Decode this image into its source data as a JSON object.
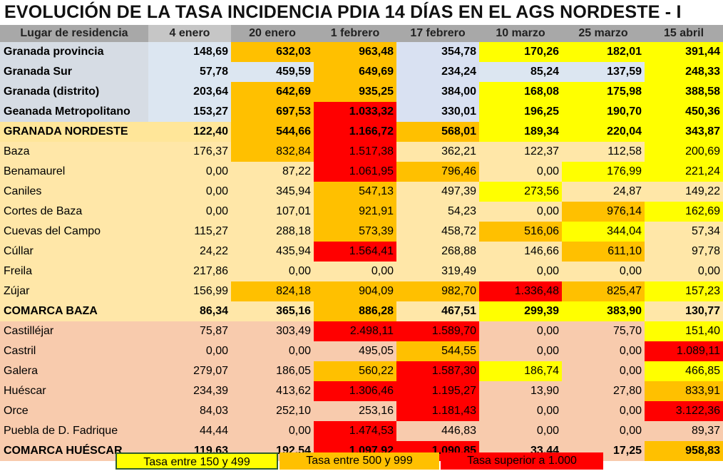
{
  "title": "EVOLUCIÓN DE LA TASA INCIDENCIA PDIA 14 DÍAS EN EL AGS NORDESTE - I",
  "colors": {
    "blue_row": "#dce6f1",
    "lavender": "#d9e1f2",
    "nordeste": "#ffe699",
    "baza": "#ffe7a8",
    "huescar": "#f8cbad",
    "yellow": "#ffff00",
    "orange": "#ffc000",
    "red": "#ff0000"
  },
  "table": {
    "headers": [
      "Lugar de residencia",
      "4 enero",
      "20 enero",
      "1 febrero",
      "17 febrero",
      "10 marzo",
      "25 marzo",
      "15 abril"
    ],
    "rows": [
      {
        "name": "Granada provincia",
        "group": "granada",
        "bold": true,
        "values": [
          "148,69",
          "632,03",
          "963,48",
          "354,78",
          "170,26",
          "182,01",
          "391,44"
        ],
        "levels": [
          "",
          "o",
          "o",
          "",
          "y",
          "y",
          "y"
        ]
      },
      {
        "name": "Granada Sur",
        "group": "granada",
        "bold": true,
        "values": [
          "57,78",
          "459,59",
          "649,69",
          "234,24",
          "85,24",
          "137,59",
          "248,33"
        ],
        "levels": [
          "",
          "",
          "o",
          "",
          "",
          "",
          "y"
        ]
      },
      {
        "name": "Granada (distrito)",
        "group": "granada",
        "bold": true,
        "values": [
          "203,64",
          "642,69",
          "935,25",
          "384,00",
          "168,08",
          "175,98",
          "388,58"
        ],
        "levels": [
          "",
          "o",
          "o",
          "",
          "y",
          "y",
          "y"
        ]
      },
      {
        "name": "Geanada Metropolitano",
        "group": "granada",
        "bold": true,
        "values": [
          "153,27",
          "697,53",
          "1.033,32",
          "330,01",
          "196,25",
          "190,70",
          "450,36"
        ],
        "levels": [
          "",
          "o",
          "r",
          "",
          "y",
          "y",
          "y"
        ]
      },
      {
        "name": "GRANADA NORDESTE",
        "group": "nordeste",
        "bold": true,
        "values": [
          "122,40",
          "544,66",
          "1.166,72",
          "568,01",
          "189,34",
          "220,04",
          "343,87"
        ],
        "levels": [
          "",
          "o",
          "r",
          "o",
          "y",
          "y",
          "y"
        ]
      },
      {
        "name": "Baza",
        "group": "baza",
        "bold": false,
        "values": [
          "176,37",
          "832,84",
          "1.517,38",
          "362,21",
          "122,37",
          "112,58",
          "200,69"
        ],
        "levels": [
          "",
          "o",
          "r",
          "",
          "",
          "",
          "y"
        ]
      },
      {
        "name": "Benamaurel",
        "group": "baza",
        "bold": false,
        "values": [
          "0,00",
          "87,22",
          "1.061,95",
          "796,46",
          "0,00",
          "176,99",
          "221,24"
        ],
        "levels": [
          "",
          "",
          "r",
          "o",
          "",
          "y",
          "y"
        ]
      },
      {
        "name": "Caniles",
        "group": "baza",
        "bold": false,
        "values": [
          "0,00",
          "345,94",
          "547,13",
          "497,39",
          "273,56",
          "24,87",
          "149,22"
        ],
        "levels": [
          "",
          "",
          "o",
          "",
          "y",
          "",
          ""
        ]
      },
      {
        "name": "Cortes de Baza",
        "group": "baza",
        "bold": false,
        "values": [
          "0,00",
          "107,01",
          "921,91",
          "54,23",
          "0,00",
          "976,14",
          "162,69"
        ],
        "levels": [
          "",
          "",
          "o",
          "",
          "",
          "o",
          "y"
        ]
      },
      {
        "name": "Cuevas del Campo",
        "group": "baza",
        "bold": false,
        "values": [
          "115,27",
          "288,18",
          "573,39",
          "458,72",
          "516,06",
          "344,04",
          "57,34"
        ],
        "levels": [
          "",
          "",
          "o",
          "",
          "o",
          "y",
          ""
        ]
      },
      {
        "name": "Cúllar",
        "group": "baza",
        "bold": false,
        "values": [
          "24,22",
          "435,94",
          "1.564,41",
          "268,88",
          "146,66",
          "611,10",
          "97,78"
        ],
        "levels": [
          "",
          "",
          "r",
          "",
          "",
          "o",
          ""
        ]
      },
      {
        "name": "Freila",
        "group": "baza",
        "bold": false,
        "values": [
          "217,86",
          "0,00",
          "0,00",
          "319,49",
          "0,00",
          "0,00",
          "0,00"
        ],
        "levels": [
          "",
          "",
          "",
          "",
          "",
          "",
          ""
        ]
      },
      {
        "name": "Zújar",
        "group": "baza",
        "bold": false,
        "values": [
          "156,99",
          "824,18",
          "904,09",
          "982,70",
          "1.336,48",
          "825,47",
          "157,23"
        ],
        "levels": [
          "",
          "o",
          "o",
          "o",
          "r",
          "o",
          "y"
        ]
      },
      {
        "name": "COMARCA BAZA",
        "group": "baza",
        "bold": true,
        "values": [
          "86,34",
          "365,16",
          "886,28",
          "467,51",
          "299,39",
          "383,90",
          "130,77"
        ],
        "levels": [
          "",
          "",
          "o",
          "",
          "y",
          "y",
          ""
        ]
      },
      {
        "name": "Castilléjar",
        "group": "huescar",
        "bold": false,
        "values": [
          "75,87",
          "303,49",
          "2.498,11",
          "1.589,70",
          "0,00",
          "75,70",
          "151,40"
        ],
        "levels": [
          "",
          "",
          "r",
          "r",
          "",
          "",
          "y"
        ]
      },
      {
        "name": "Castril",
        "group": "huescar",
        "bold": false,
        "values": [
          "0,00",
          "0,00",
          "495,05",
          "544,55",
          "0,00",
          "0,00",
          "1.089,11"
        ],
        "levels": [
          "",
          "",
          "",
          "o",
          "",
          "",
          "r"
        ]
      },
      {
        "name": "Galera",
        "group": "huescar",
        "bold": false,
        "values": [
          "279,07",
          "186,05",
          "560,22",
          "1.587,30",
          "186,74",
          "0,00",
          "466,85"
        ],
        "levels": [
          "",
          "",
          "o",
          "r",
          "y",
          "",
          "y"
        ]
      },
      {
        "name": "Huéscar",
        "group": "huescar",
        "bold": false,
        "values": [
          "234,39",
          "413,62",
          "1.306,46",
          "1.195,27",
          "13,90",
          "27,80",
          "833,91"
        ],
        "levels": [
          "",
          "",
          "r",
          "r",
          "",
          "",
          "o"
        ]
      },
      {
        "name": "Orce",
        "group": "huescar",
        "bold": false,
        "values": [
          "84,03",
          "252,10",
          "253,16",
          "1.181,43",
          "0,00",
          "0,00",
          "3.122,36"
        ],
        "levels": [
          "",
          "",
          "",
          "r",
          "",
          "",
          "r"
        ]
      },
      {
        "name": "Puebla de D. Fadrique",
        "group": "huescar",
        "bold": false,
        "values": [
          "44,44",
          "0,00",
          "1.474,53",
          "446,83",
          "0,00",
          "0,00",
          "89,37"
        ],
        "levels": [
          "",
          "",
          "r",
          "",
          "",
          "",
          ""
        ]
      },
      {
        "name": "COMARCA HUÉSCAR",
        "group": "huescar",
        "bold": true,
        "values": [
          "119,63",
          "192,54",
          "1.097,92",
          "1.090,85",
          "33,44",
          "17,25",
          "958,83"
        ],
        "levels": [
          "",
          "",
          "r",
          "r",
          "",
          "",
          "o"
        ]
      }
    ]
  },
  "legend": [
    {
      "label": "Tasa entre 150 y 499",
      "level": "y"
    },
    {
      "label": "Tasa entre 500 y 999",
      "level": "o"
    },
    {
      "label": "Tasa superior a 1.000",
      "level": "r"
    }
  ]
}
